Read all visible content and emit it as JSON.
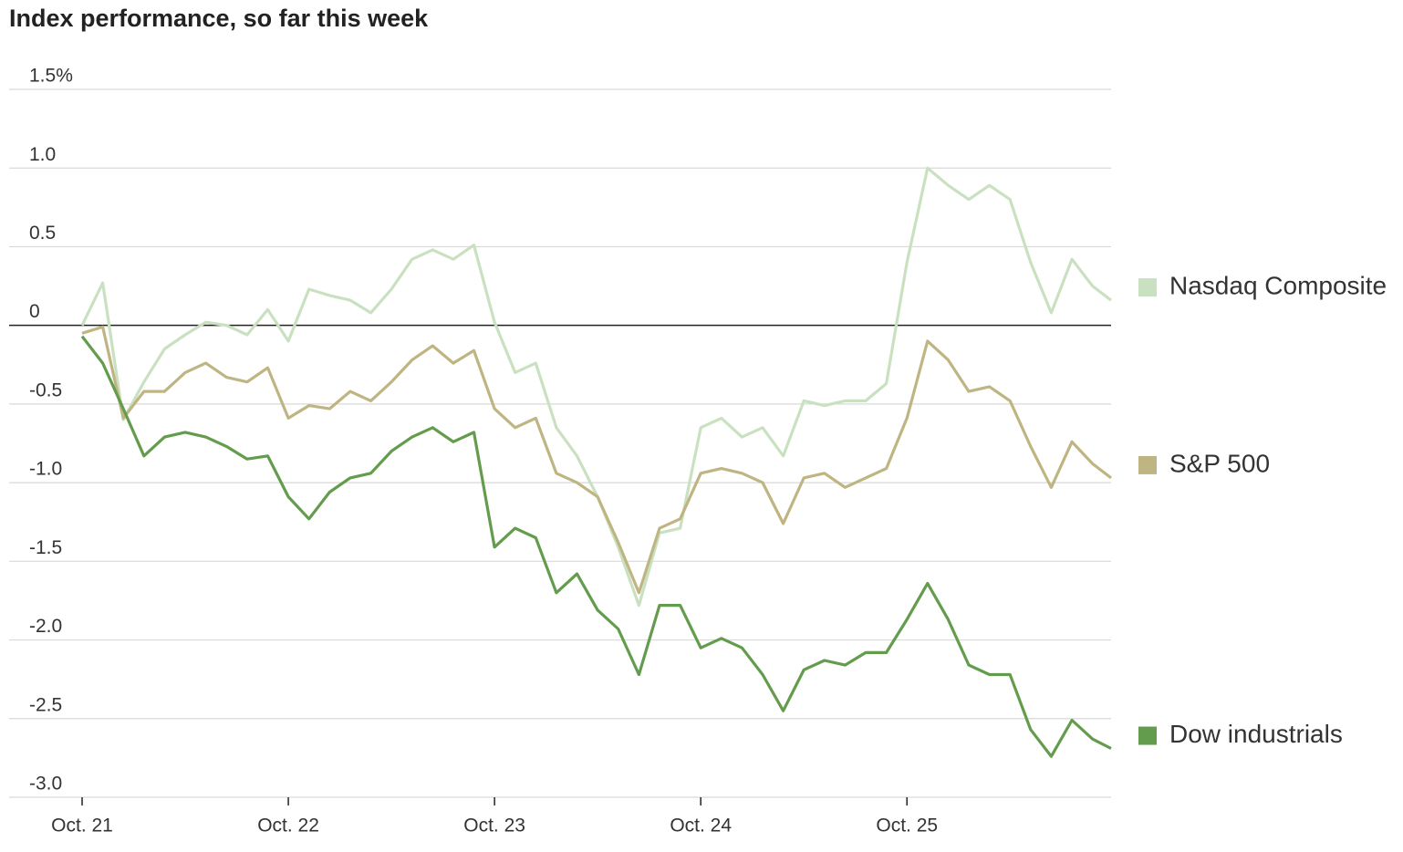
{
  "chart_data": {
    "type": "line",
    "title": "Index performance, so far this week",
    "x": [
      0,
      0.1,
      0.2,
      0.3,
      0.4,
      0.5,
      0.6,
      0.7,
      0.8,
      0.9,
      1.0,
      1.1,
      1.2,
      1.3,
      1.4,
      1.5,
      1.6,
      1.7,
      1.8,
      1.9,
      2.0,
      2.1,
      2.2,
      2.3,
      2.4,
      2.5,
      2.6,
      2.7,
      2.8,
      2.9,
      3.0,
      3.1,
      3.2,
      3.3,
      3.4,
      3.5,
      3.6,
      3.7,
      3.8,
      3.9,
      4.0,
      4.1,
      4.2,
      4.3,
      4.4,
      4.5,
      4.6,
      4.7,
      4.8,
      4.9,
      4.99
    ],
    "xlim": [
      -0.354,
      4.99
    ],
    "xticks": [
      {
        "value": 0,
        "label": "Oct. 21"
      },
      {
        "value": 1,
        "label": "Oct. 22"
      },
      {
        "value": 2,
        "label": "Oct. 23"
      },
      {
        "value": 3,
        "label": "Oct. 24"
      },
      {
        "value": 4,
        "label": "Oct. 25"
      }
    ],
    "ylim": [
      -3.0,
      1.5
    ],
    "yticks": [
      {
        "value": 1.5,
        "label": "1.5%"
      },
      {
        "value": 1,
        "label": "1.0"
      },
      0.5,
      0,
      -0.5,
      {
        "value": -1,
        "label": "-1.0"
      },
      -1.5,
      {
        "value": -2,
        "label": "-2.0"
      },
      -2.5,
      {
        "value": -3,
        "label": "-3.0"
      }
    ],
    "grid": true,
    "legend": "right",
    "series": [
      {
        "name": "Nasdaq Composite",
        "color": "#c9e1c0",
        "values": [
          0,
          0.27,
          -0.6,
          -0.36,
          -0.15,
          -0.06,
          0.02,
          0.0,
          -0.06,
          0.1,
          -0.1,
          0.23,
          0.19,
          0.16,
          0.08,
          0.23,
          0.42,
          0.48,
          0.42,
          0.51,
          0.02,
          -0.3,
          -0.24,
          -0.65,
          -0.83,
          -1.09,
          -1.41,
          -1.78,
          -1.32,
          -1.29,
          -0.65,
          -0.59,
          -0.71,
          -0.65,
          -0.83,
          -0.48,
          -0.51,
          -0.48,
          -0.48,
          -0.37,
          0.4,
          1.0,
          0.89,
          0.8,
          0.89,
          0.8,
          0.4,
          0.08,
          0.42,
          0.25,
          0.16
        ]
      },
      {
        "name": "S&P 500",
        "color": "#bfb582",
        "values": [
          -0.05,
          -0.01,
          -0.59,
          -0.42,
          -0.42,
          -0.3,
          -0.24,
          -0.33,
          -0.36,
          -0.27,
          -0.59,
          -0.51,
          -0.53,
          -0.42,
          -0.48,
          -0.36,
          -0.22,
          -0.13,
          -0.24,
          -0.16,
          -0.53,
          -0.65,
          -0.59,
          -0.94,
          -1.0,
          -1.09,
          -1.38,
          -1.7,
          -1.29,
          -1.23,
          -0.94,
          -0.91,
          -0.94,
          -1.0,
          -1.26,
          -0.97,
          -0.94,
          -1.03,
          -0.97,
          -0.91,
          -0.59,
          -0.1,
          -0.22,
          -0.42,
          -0.39,
          -0.48,
          -0.77,
          -1.03,
          -0.74,
          -0.88,
          -0.97
        ]
      },
      {
        "name": "Dow industrials",
        "color": "#639c4c",
        "values": [
          -0.07,
          -0.24,
          -0.53,
          -0.83,
          -0.71,
          -0.68,
          -0.71,
          -0.77,
          -0.85,
          -0.83,
          -1.09,
          -1.23,
          -1.06,
          -0.97,
          -0.94,
          -0.8,
          -0.71,
          -0.65,
          -0.74,
          -0.68,
          -1.41,
          -1.29,
          -1.35,
          -1.7,
          -1.58,
          -1.81,
          -1.93,
          -2.22,
          -1.78,
          -1.78,
          -2.05,
          -1.99,
          -2.05,
          -2.22,
          -2.45,
          -2.19,
          -2.13,
          -2.16,
          -2.08,
          -2.08,
          -1.87,
          -1.64,
          -1.87,
          -2.16,
          -2.22,
          -2.22,
          -2.57,
          -2.74,
          -2.51,
          -2.63,
          -2.69
        ]
      }
    ]
  }
}
